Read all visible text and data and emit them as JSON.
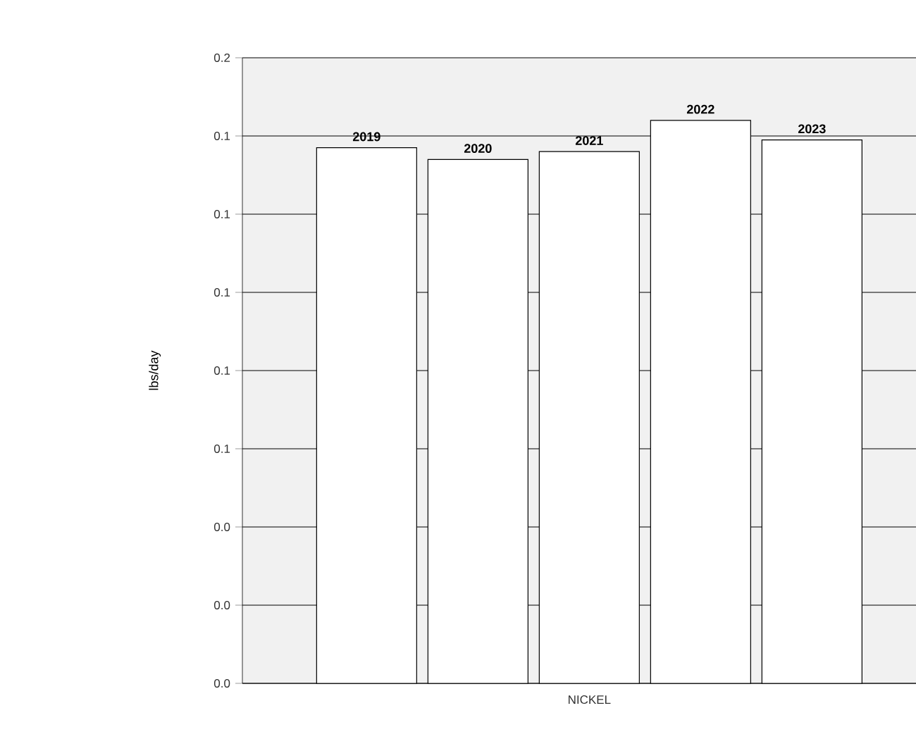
{
  "chart_data": {
    "type": "bar",
    "ylabel": "lbs/day",
    "categories": [
      "NICKEL"
    ],
    "series": [
      {
        "name": "2019",
        "color": "#ffffff",
        "values": [
          0.137
        ]
      },
      {
        "name": "2020",
        "color": "#ffffff",
        "values": [
          0.134
        ]
      },
      {
        "name": "2021",
        "color": "#ffffff",
        "values": [
          0.136
        ]
      },
      {
        "name": "2022",
        "color": "#ffffff",
        "values": [
          0.144
        ]
      },
      {
        "name": "2023",
        "color": "#ffffff",
        "values": [
          0.139
        ]
      }
    ],
    "ylim": [
      0,
      0.16
    ],
    "yticks": [
      {
        "value": 0,
        "label": "0.0"
      },
      {
        "value": 0.02,
        "label": "0.0"
      },
      {
        "value": 0.04,
        "label": "0.0"
      },
      {
        "value": 0.06,
        "label": "0.1"
      },
      {
        "value": 0.08,
        "label": "0.1"
      },
      {
        "value": 0.1,
        "label": "0.1"
      },
      {
        "value": 0.12,
        "label": "0.1"
      },
      {
        "value": 0.14,
        "label": "0.1"
      },
      {
        "value": 0.16,
        "label": "0.2"
      }
    ],
    "grid": "y",
    "legend": false
  }
}
